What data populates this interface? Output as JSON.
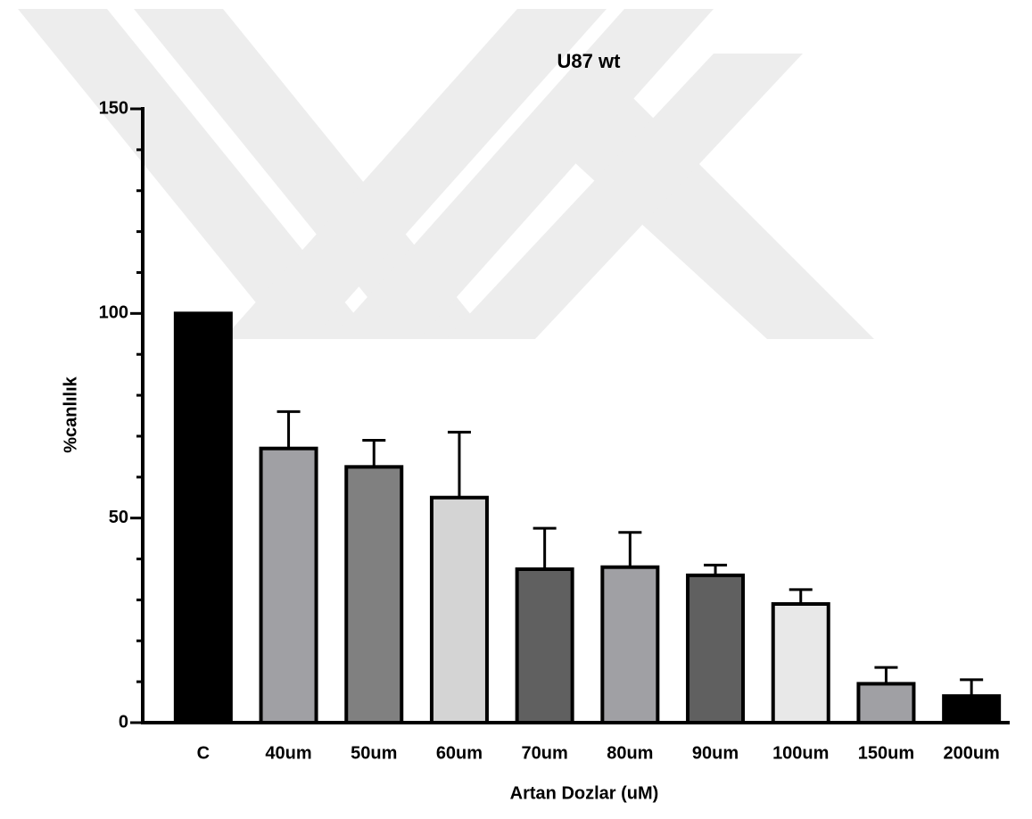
{
  "chart_data": {
    "type": "bar",
    "title": "U87 wt",
    "xlabel": "Artan Dozlar (uM)",
    "ylabel": "%canlılık",
    "categories": [
      "C",
      "40um",
      "50um",
      "60um",
      "70um",
      "80um",
      "90um",
      "100um",
      "150um",
      "200um"
    ],
    "values": [
      100,
      67,
      62.5,
      55,
      37.5,
      38,
      36,
      29,
      9.5,
      6.5
    ],
    "errors": [
      null,
      9,
      6.5,
      16,
      10,
      8.5,
      2.5,
      3.5,
      4,
      4
    ],
    "colors": [
      "#000000",
      "#a0a0a4",
      "#808080",
      "#d4d4d4",
      "#606060",
      "#a0a0a4",
      "#606060",
      "#e8e8e8",
      "#a0a0a4",
      "#000000"
    ],
    "ylim": [
      0,
      150
    ],
    "yticks": [
      0,
      50,
      100,
      150
    ],
    "yminorticks": [
      10,
      20,
      30,
      40,
      60,
      70,
      80,
      90,
      110,
      120,
      130,
      140
    ]
  }
}
